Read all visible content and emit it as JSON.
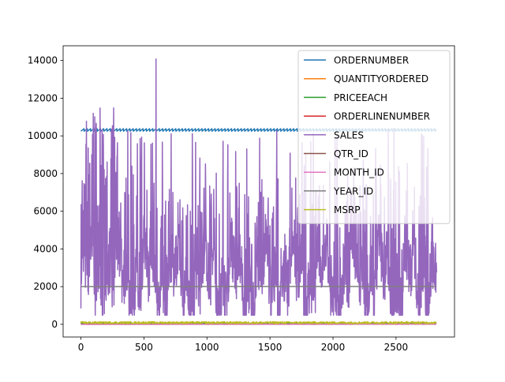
{
  "chart_data": {
    "type": "line",
    "title": "",
    "xlabel": "",
    "ylabel": "",
    "xlim": [
      -141,
      2964
    ],
    "ylim": [
      -674,
      14782
    ],
    "grid": false,
    "legend_placement": "top-right",
    "x_ticks": [
      0,
      500,
      1000,
      1500,
      2000,
      2500
    ],
    "x_tick_labels": [
      "0",
      "500",
      "1000",
      "1500",
      "2000",
      "2500"
    ],
    "y_ticks": [
      0,
      2000,
      4000,
      6000,
      8000,
      10000,
      12000,
      14000
    ],
    "y_tick_labels": [
      "0",
      "2000",
      "4000",
      "6000",
      "8000",
      "10000",
      "12000",
      "14000"
    ],
    "x_count": 2823,
    "series": [
      {
        "name": "ORDERNUMBER",
        "color": "#1f77b4",
        "pattern": "sawtooth",
        "min": 10100,
        "max": 10425
      },
      {
        "name": "QUANTITYORDERED",
        "color": "#ff7f0e",
        "pattern": "noise",
        "min": 6,
        "max": 97
      },
      {
        "name": "PRICEEACH",
        "color": "#2ca02c",
        "pattern": "noise",
        "min": 27,
        "max": 100
      },
      {
        "name": "ORDERLINENUMBER",
        "color": "#d62728",
        "pattern": "noise",
        "min": 1,
        "max": 18
      },
      {
        "name": "SALES",
        "color": "#9467bd",
        "pattern": "spiky",
        "min": 482,
        "max": 14082,
        "peak_x": 596,
        "peak_y": 14082
      },
      {
        "name": "QTR_ID",
        "color": "#8c564b",
        "pattern": "steps",
        "min": 1,
        "max": 4
      },
      {
        "name": "MONTH_ID",
        "color": "#e377c2",
        "pattern": "steps",
        "min": 1,
        "max": 12
      },
      {
        "name": "YEAR_ID",
        "color": "#7f7f7f",
        "pattern": "steps",
        "min": 2003,
        "max": 2005
      },
      {
        "name": "MSRP",
        "color": "#bcbd22",
        "pattern": "noise",
        "min": 33,
        "max": 214
      }
    ]
  }
}
